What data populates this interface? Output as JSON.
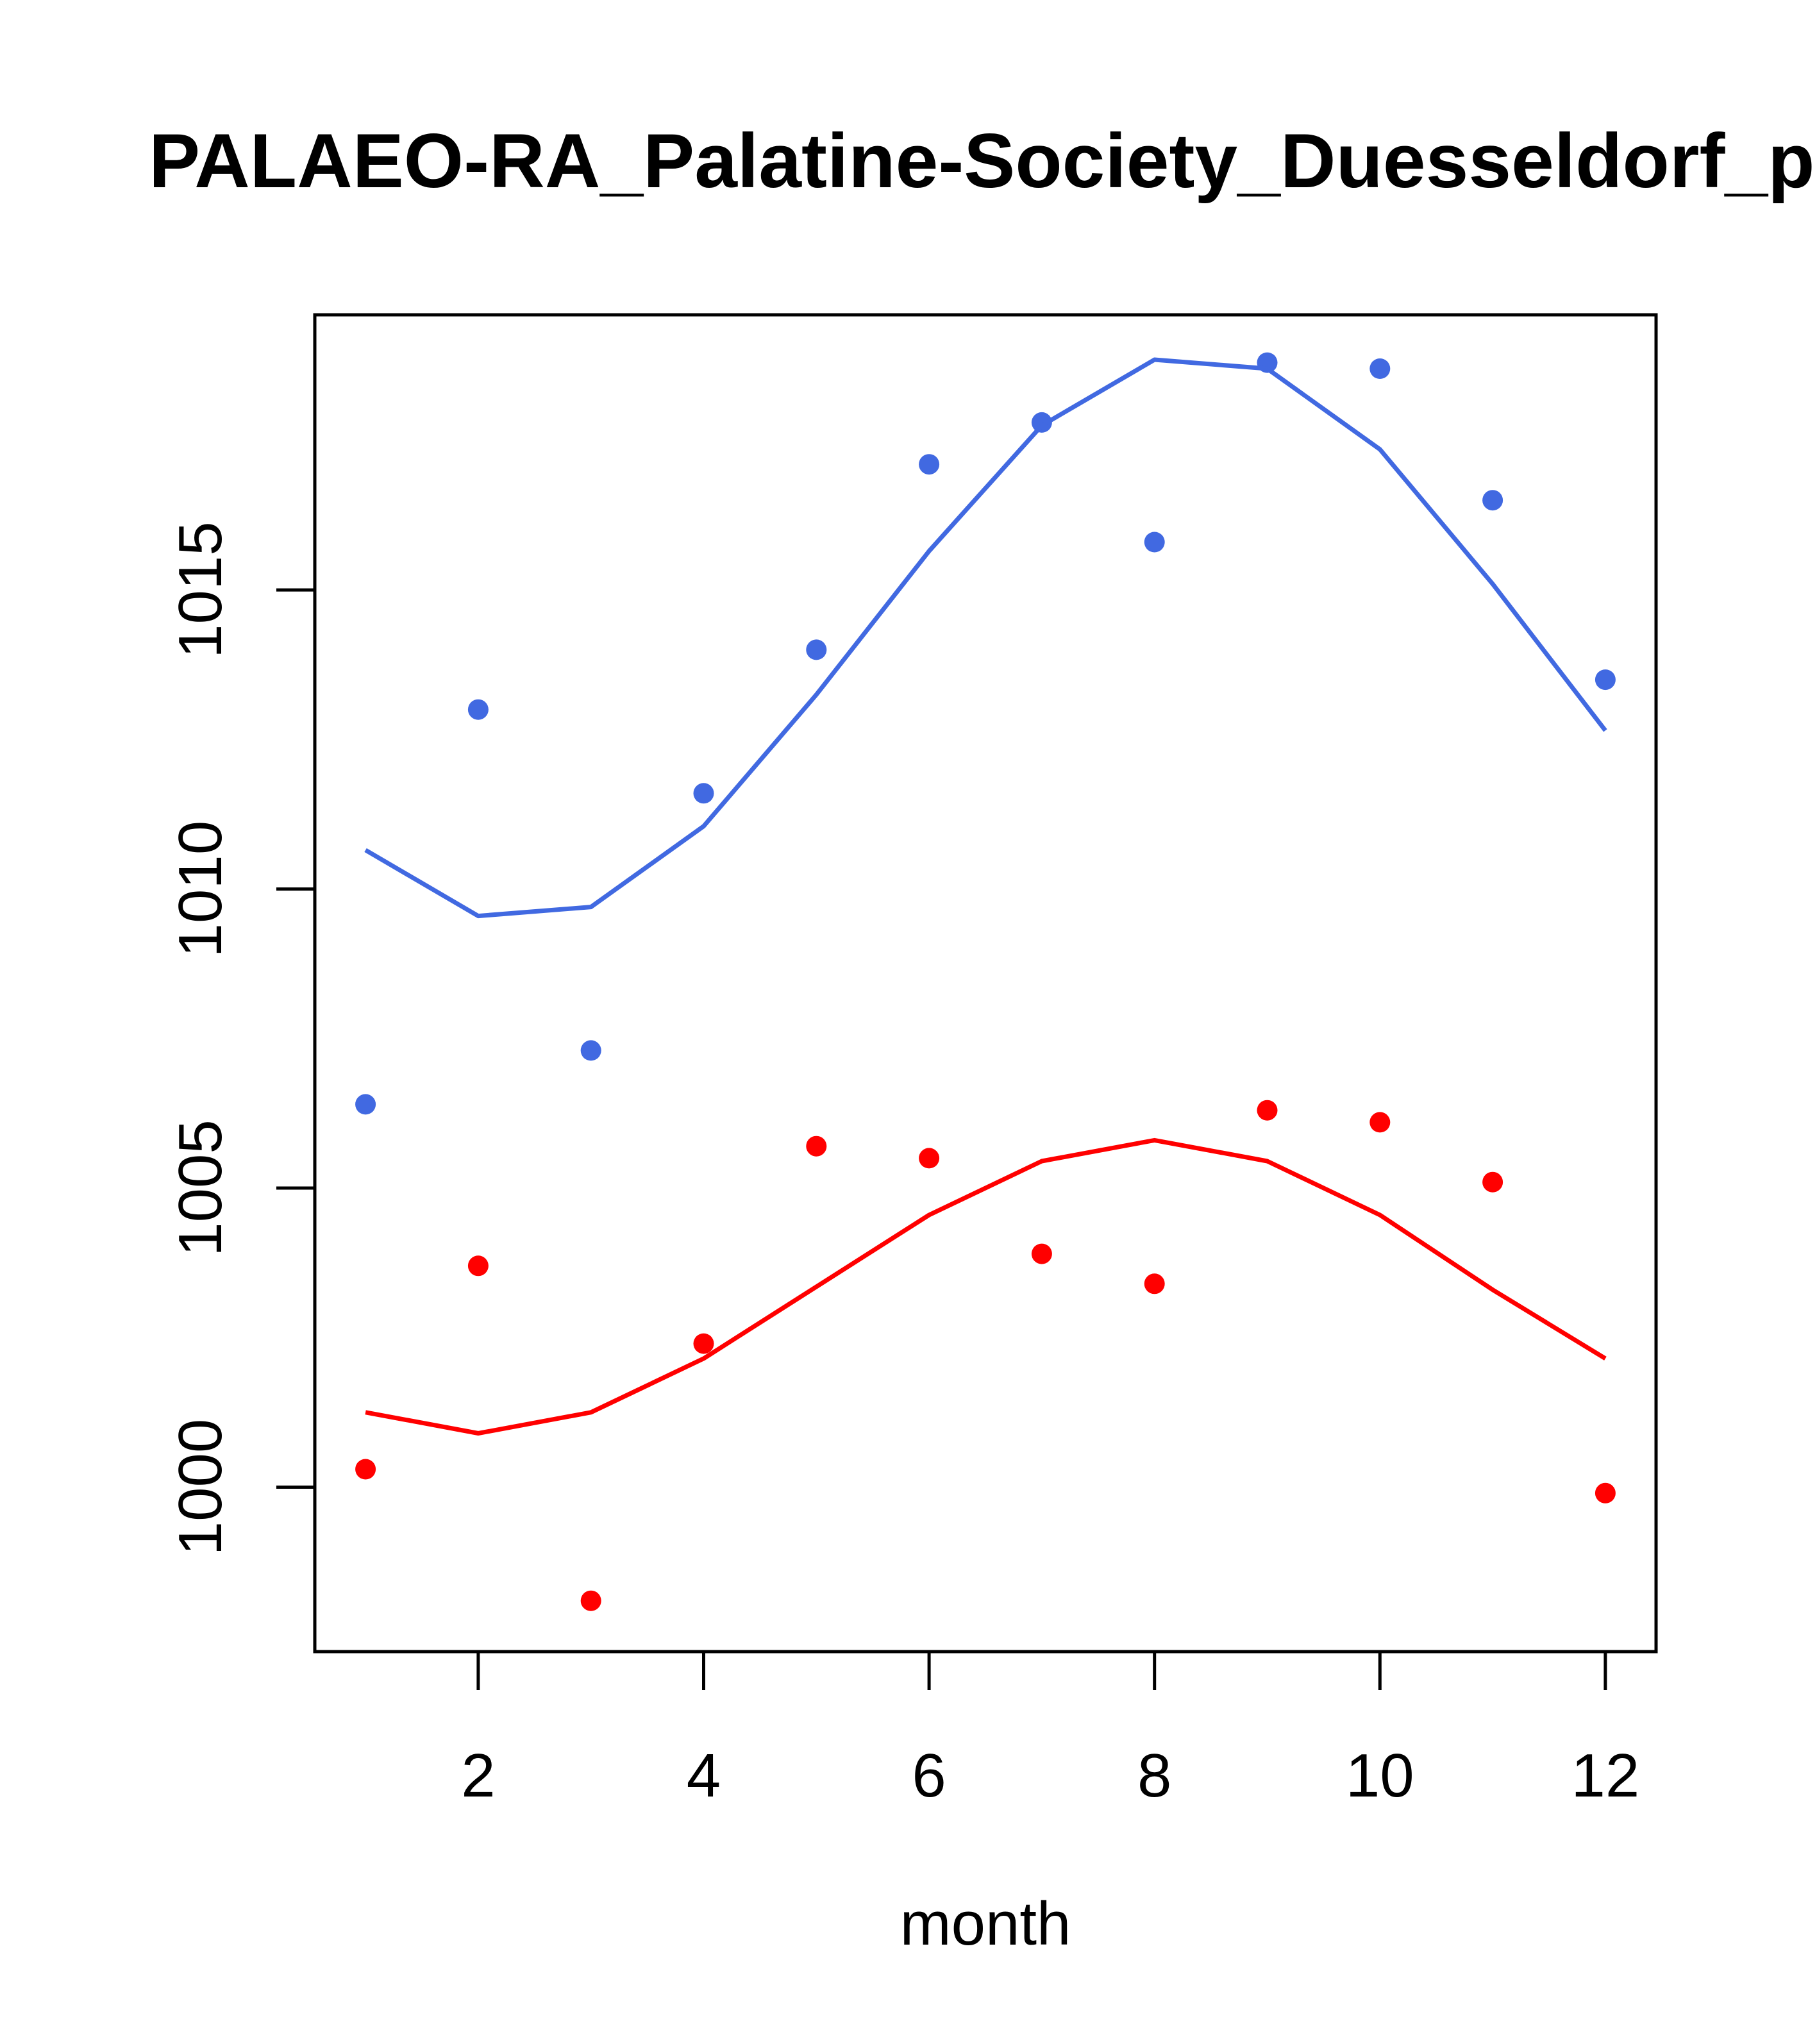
{
  "chart_data": {
    "type": "scatter",
    "title": "PALAEO-RA_Palatine-Society_Duesseldorf_p",
    "xlabel": "month",
    "ylabel": "",
    "xlim": [
      0.55,
      12.45
    ],
    "ylim": [
      997.25,
      1019.6
    ],
    "x_ticks": [
      2,
      4,
      6,
      8,
      10,
      12
    ],
    "x_tick_labels": [
      "2",
      "4",
      "6",
      "8",
      "10",
      "12"
    ],
    "y_ticks": [
      1000,
      1005,
      1010,
      1015
    ],
    "y_tick_labels": [
      "1000",
      "1005",
      "1010",
      "1015"
    ],
    "grid": false,
    "series": [
      {
        "name": "blue-points",
        "kind": "points",
        "color": "#4169E1",
        "x": [
          1,
          2,
          3,
          4,
          5,
          6,
          7,
          8,
          9,
          10,
          11,
          12
        ],
        "y": [
          1006.4,
          1013.0,
          1007.3,
          1011.6,
          1014.0,
          1017.1,
          1017.8,
          1015.8,
          1018.8,
          1018.7,
          1016.5,
          1013.5
        ]
      },
      {
        "name": "blue-line",
        "kind": "line",
        "color": "#4169E1",
        "x": [
          1,
          2,
          3,
          4,
          5,
          6,
          7,
          8,
          9,
          10,
          11,
          12
        ],
        "y": [
          1010.65,
          1009.55,
          1009.7,
          1011.05,
          1013.25,
          1015.65,
          1017.75,
          1018.85,
          1018.7,
          1017.35,
          1015.1,
          1012.65
        ]
      },
      {
        "name": "red-points",
        "kind": "points",
        "color": "#FF0000",
        "x": [
          1,
          2,
          3,
          4,
          5,
          6,
          7,
          8,
          9,
          10,
          11,
          12
        ],
        "y": [
          1000.3,
          1003.7,
          998.1,
          1002.4,
          1005.7,
          1005.5,
          1003.9,
          1003.4,
          1006.3,
          1006.1,
          1005.1,
          999.9
        ]
      },
      {
        "name": "red-line",
        "kind": "line",
        "color": "#FF0000",
        "x": [
          1,
          2,
          3,
          4,
          5,
          6,
          7,
          8,
          9,
          10,
          11,
          12
        ],
        "y": [
          1001.25,
          1000.9,
          1001.25,
          1002.15,
          1003.35,
          1004.55,
          1005.45,
          1005.8,
          1005.45,
          1004.55,
          1003.3,
          1002.15
        ]
      }
    ]
  }
}
